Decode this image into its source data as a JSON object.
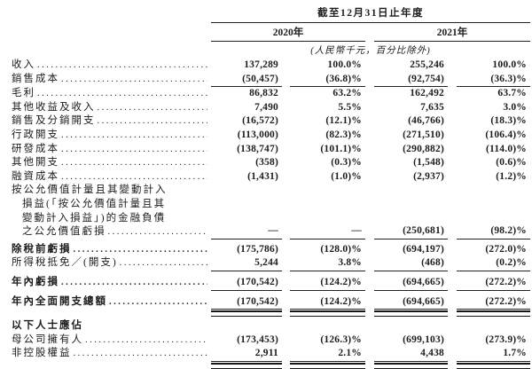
{
  "table": {
    "period_header": "截至12月31日止年度",
    "year_headers": [
      "2020年",
      "2021年"
    ],
    "unit_note": "(人民幣千元，百分比除外)",
    "columns": [
      "2020年金額",
      "2020年百分比",
      "2021年金額",
      "2021年百分比"
    ],
    "rows": [
      {
        "label": "收入",
        "leaders": true,
        "values": [
          "137,289",
          "100.0%",
          "255,246",
          "100.0%"
        ]
      },
      {
        "label": "銷售成本",
        "leaders": true,
        "values": [
          "(50,457)",
          "(36.8)%",
          "(92,754)",
          "(36.3)%"
        ],
        "rule": "under"
      },
      {
        "label": "毛利",
        "leaders": true,
        "values": [
          "86,832",
          "63.2%",
          "162,492",
          "63.7%"
        ]
      },
      {
        "label": "其他收益及收入",
        "leaders": true,
        "values": [
          "7,490",
          "5.5%",
          "7,635",
          "3.0%"
        ]
      },
      {
        "label": "銷售及分銷開支",
        "leaders": true,
        "values": [
          "(16,572)",
          "(12.1)%",
          "(46,766)",
          "(18.3)%"
        ]
      },
      {
        "label": "行政開支",
        "leaders": true,
        "values": [
          "(113,000)",
          "(82.3)%",
          "(271,510)",
          "(106.4)%"
        ]
      },
      {
        "label": "研發成本",
        "leaders": true,
        "values": [
          "(138,747)",
          "(101.1)%",
          "(290,882)",
          "(114.0)%"
        ]
      },
      {
        "label": "其他開支",
        "leaders": true,
        "values": [
          "(358)",
          "(0.3)%",
          "(1,548)",
          "(0.6)%"
        ]
      },
      {
        "label": "融資成本",
        "leaders": true,
        "values": [
          "(1,431)",
          "(1.0)%",
          "(2,937)",
          "(1.2)%"
        ]
      },
      {
        "label_lines": [
          "按公允價值計量且其變動計入",
          "損益(「按公允價值計量且其",
          "變動計入損益」)的金融負債",
          "之公允價值虧損"
        ],
        "leaders": true,
        "values": [
          "—",
          "—",
          "(250,681)",
          "(98.2)%"
        ],
        "rule": "under"
      },
      {
        "label": "除稅前虧損",
        "bold": true,
        "leaders": true,
        "values": [
          "(175,786)",
          "(128.0)%",
          "(694,197)",
          "(272.0)%"
        ],
        "margin_top": 4
      },
      {
        "label": "所得稅抵免／(開支)",
        "leaders": true,
        "values": [
          "5,244",
          "3.8%",
          "(468)",
          "(0.2)%"
        ],
        "rule": "under"
      },
      {
        "label": "年內虧損",
        "bold": true,
        "leaders": true,
        "values": [
          "(170,542)",
          "(124.2)%",
          "(694,665)",
          "(272.2)%"
        ],
        "rule": "under",
        "margin_top": 5
      },
      {
        "label": "年內全面開支總額",
        "bold": true,
        "leaders": true,
        "values": [
          "(170,542)",
          "(124.2)%",
          "(694,665)",
          "(272.2)%"
        ],
        "rule": "dbl",
        "margin_top": 5
      },
      {
        "label": "以下人士應佔",
        "bold": true,
        "leaders": false,
        "values": null,
        "margin_top": 11
      },
      {
        "label": "母公司擁有人",
        "leaders": true,
        "values": [
          "(173,453)",
          "(126.3)%",
          "(699,103)",
          "(273.9)%"
        ]
      },
      {
        "label": "非控股權益",
        "leaders": true,
        "values": [
          "2,911",
          "2.1%",
          "4,438",
          "1.7%"
        ],
        "rule": "dbl"
      }
    ]
  }
}
